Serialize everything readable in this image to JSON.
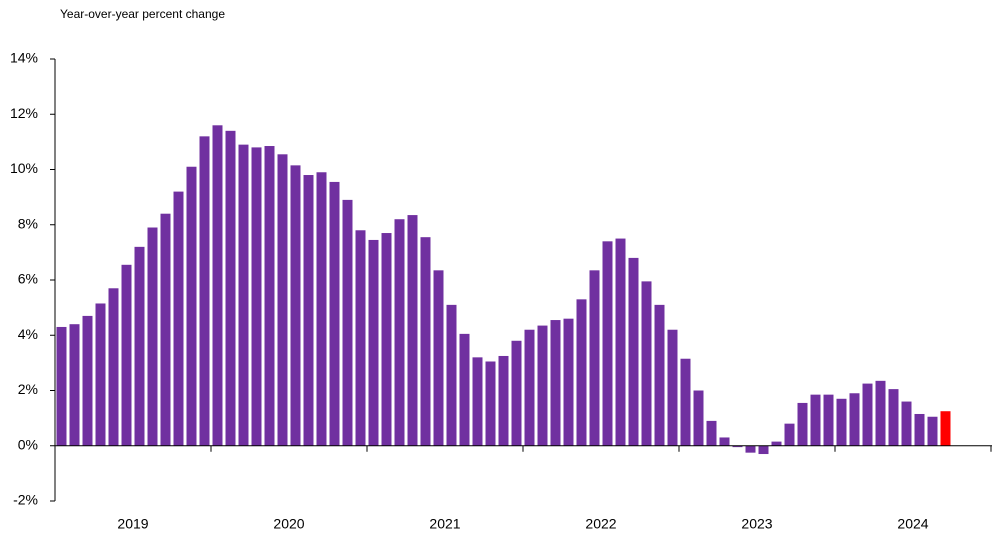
{
  "chart_data": {
    "type": "bar",
    "y_axis_title": "Year-over-year percent change",
    "categories": [
      "2019",
      null,
      null,
      null,
      null,
      null,
      null,
      null,
      null,
      null,
      null,
      null,
      "2020",
      null,
      null,
      null,
      null,
      null,
      null,
      null,
      null,
      null,
      null,
      null,
      "2021",
      null,
      null,
      null,
      null,
      null,
      null,
      null,
      null,
      null,
      null,
      null,
      "2022",
      null,
      null,
      null,
      null,
      null,
      null,
      null,
      null,
      null,
      null,
      null,
      "2023",
      null,
      null,
      null,
      null,
      null,
      null,
      null,
      null,
      null,
      null,
      null,
      "2024",
      null,
      null,
      null,
      null,
      null,
      null,
      null,
      null
    ],
    "values": [
      4.3,
      4.4,
      4.7,
      5.15,
      5.7,
      6.55,
      7.2,
      7.9,
      8.4,
      9.2,
      10.1,
      11.2,
      11.6,
      11.4,
      10.9,
      10.8,
      10.85,
      10.55,
      10.15,
      9.8,
      9.9,
      9.55,
      8.9,
      7.8,
      7.45,
      7.7,
      8.2,
      8.35,
      7.55,
      6.35,
      5.1,
      4.05,
      3.2,
      3.05,
      3.25,
      3.8,
      4.2,
      4.35,
      4.55,
      4.6,
      5.3,
      6.35,
      7.4,
      7.5,
      6.8,
      5.95,
      5.1,
      4.2,
      3.15,
      2.0,
      0.9,
      0.3,
      -0.05,
      -0.25,
      -0.3,
      0.15,
      0.8,
      1.55,
      1.85,
      1.85,
      1.7,
      1.9,
      2.25,
      2.35,
      2.05,
      1.6,
      1.15,
      1.05,
      1.25
    ],
    "color": "#7030a0",
    "highlight_color": "#ff0000",
    "highlight_last": true,
    "ylim": [
      -2,
      14
    ],
    "yticks": [
      {
        "value": -2,
        "label": "-2%"
      },
      {
        "value": 0,
        "label": "0%"
      },
      {
        "value": 2,
        "label": "2%"
      },
      {
        "value": 4,
        "label": "4%"
      },
      {
        "value": 6,
        "label": "6%"
      },
      {
        "value": 8,
        "label": "8%"
      },
      {
        "value": 10,
        "label": "10%"
      },
      {
        "value": 12,
        "label": "12%"
      },
      {
        "value": 14,
        "label": "14%"
      }
    ],
    "grid": false
  }
}
